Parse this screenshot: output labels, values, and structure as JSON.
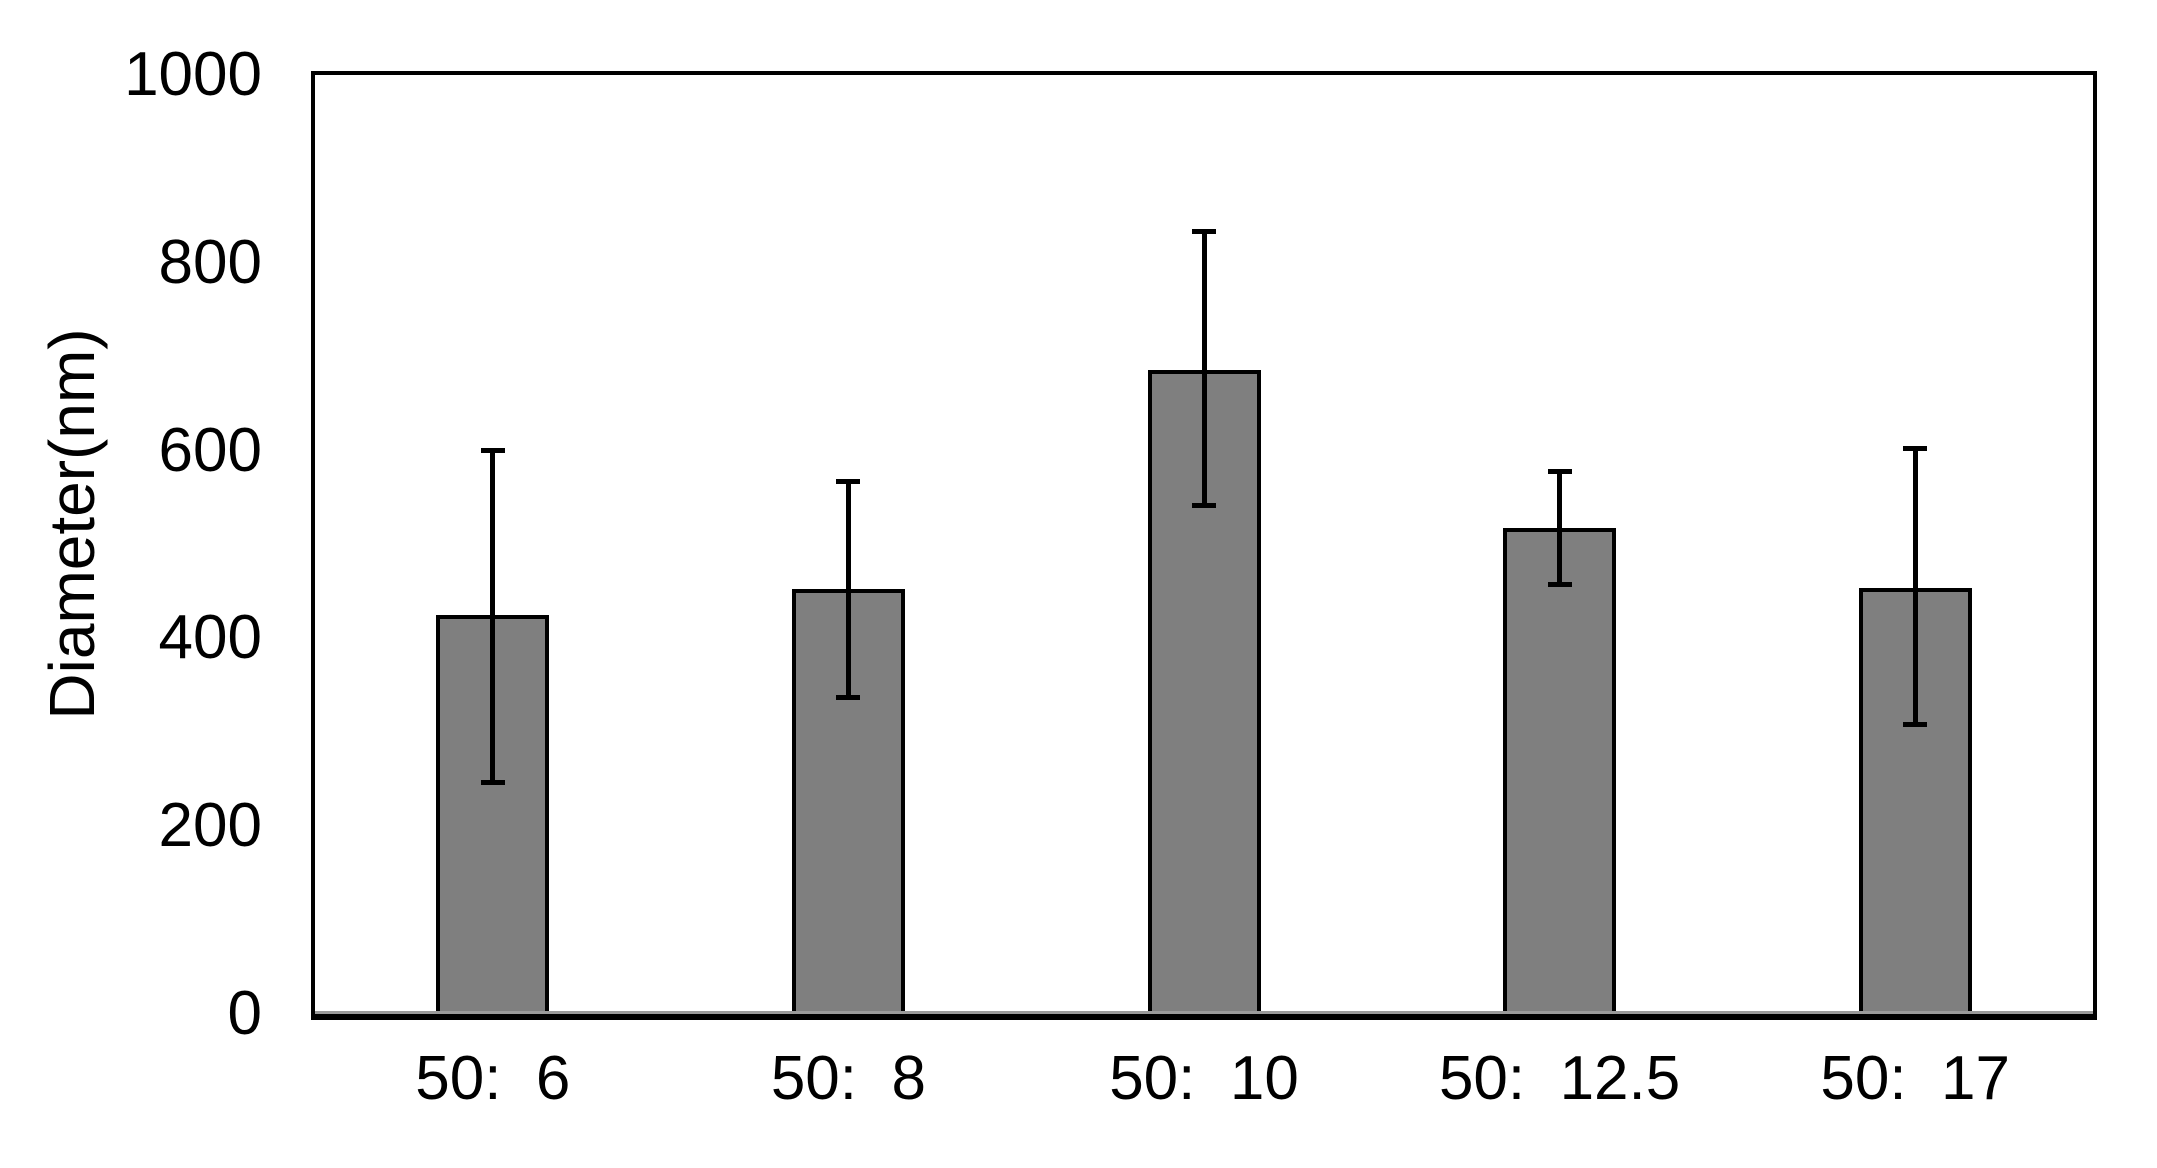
{
  "chart_data": {
    "type": "bar",
    "title": "",
    "xlabel": "",
    "ylabel": "Diameter(nm)",
    "categories": [
      "50:  6",
      "50:  8",
      "50:  10",
      "50:  12.5",
      "50:  17"
    ],
    "values": [
      425,
      453,
      686,
      518,
      454
    ],
    "error_plus": [
      175,
      114,
      147,
      60,
      148
    ],
    "error_minus": [
      178,
      116,
      144,
      61,
      146
    ],
    "ylim": [
      0,
      1000
    ],
    "yticks": [
      0,
      200,
      400,
      600,
      800,
      1000
    ],
    "grid": false,
    "legend": false,
    "bar_fill_color": "#7f7f7f",
    "bar_border_color": "#000000",
    "axis_color": "#000000",
    "axis_shadow_color": "#9b9b9b"
  }
}
